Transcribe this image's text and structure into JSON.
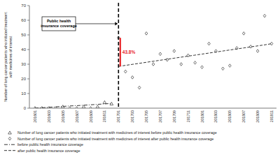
{
  "chart_data": {
    "type": "scatter",
    "ylabel": [
      "Number of lung cancer patients who initiated  treatment",
      "with medicines of interest"
    ],
    "categories": [
      "201601",
      null,
      "201603",
      null,
      "201605",
      null,
      "201607",
      null,
      "201609",
      null,
      "201611",
      null,
      "201701",
      null,
      "201703",
      null,
      "201705",
      null,
      "201707",
      null,
      "201709",
      null,
      "201711",
      null,
      "201801",
      null,
      "201803",
      null,
      "201805",
      null,
      "201807",
      null,
      "201809",
      null,
      "201811"
    ],
    "ylim": [
      0,
      70
    ],
    "yticks": [
      0,
      10,
      20,
      30,
      40,
      50,
      60,
      70
    ],
    "grid": false,
    "series": [
      {
        "name": "Number of lung cancer patients who initiated treatment with medicines of interest before public health insurance coverage",
        "type": "scatter",
        "marker": "triangle",
        "color": "#333333",
        "values": [
          0,
          0,
          0,
          0,
          1,
          0,
          0,
          1,
          0,
          1,
          4,
          3,
          null,
          null,
          null,
          null,
          null,
          null,
          null,
          null,
          null,
          null,
          null,
          null,
          null,
          null,
          null,
          null,
          null,
          null,
          null,
          null,
          null,
          null,
          null
        ]
      },
      {
        "name": "Number of lung cancer patients who initiated treatment with medicines of interest after public health insurance coverage",
        "type": "scatter",
        "marker": "diamond",
        "color": "#333333",
        "values": [
          null,
          null,
          null,
          null,
          null,
          null,
          null,
          null,
          null,
          null,
          null,
          null,
          48,
          25,
          21,
          14,
          51,
          30,
          37,
          33,
          39,
          30,
          36,
          31,
          28,
          44,
          39,
          27,
          29,
          41,
          51,
          42,
          39,
          63,
          44
        ]
      },
      {
        "name": "before public health insurance coverage",
        "type": "line",
        "line_style": "dashdot",
        "color": "#333333",
        "values": [
          0,
          0.3,
          0.6,
          0.9,
          1.2,
          1.5,
          1.7,
          2.0,
          2.3,
          2.6,
          2.9,
          3.2,
          null,
          null,
          null,
          null,
          null,
          null,
          null,
          null,
          null,
          null,
          null,
          null,
          null,
          null,
          null,
          null,
          null,
          null,
          null,
          null,
          null,
          null,
          null
        ]
      },
      {
        "name": "after public health insurance coverage",
        "type": "line",
        "line_style": "dashed",
        "color": "#333333",
        "values": [
          null,
          null,
          null,
          null,
          null,
          null,
          null,
          null,
          null,
          null,
          null,
          null,
          28.5,
          29.2,
          29.9,
          30.6,
          31.3,
          32.0,
          32.7,
          33.4,
          34.1,
          34.8,
          35.5,
          36.2,
          36.9,
          37.6,
          38.3,
          39.0,
          39.7,
          40.4,
          41.1,
          41.8,
          42.5,
          43.2,
          44.0
        ]
      }
    ],
    "annotations": [
      {
        "text": [
          "Public health",
          "insurance coverage"
        ],
        "category": "201701",
        "color": "#000000"
      },
      {
        "text": "43.8%",
        "category": "201701",
        "from": 28.5,
        "to": 48,
        "color": "#e8262a"
      }
    ],
    "legend": "bottom"
  }
}
